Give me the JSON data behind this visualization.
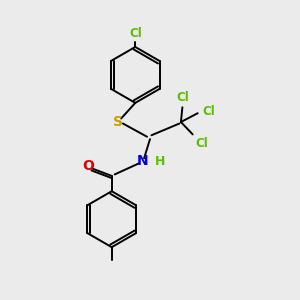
{
  "bg_color": "#ebebeb",
  "atom_colors": {
    "Cl_top": "#5abf00",
    "Cl_group": "#5abf00",
    "S": "#c8a000",
    "N": "#0000e0",
    "O": "#e00000",
    "H": "#5abf00"
  },
  "figsize": [
    3.0,
    3.0
  ],
  "dpi": 100
}
